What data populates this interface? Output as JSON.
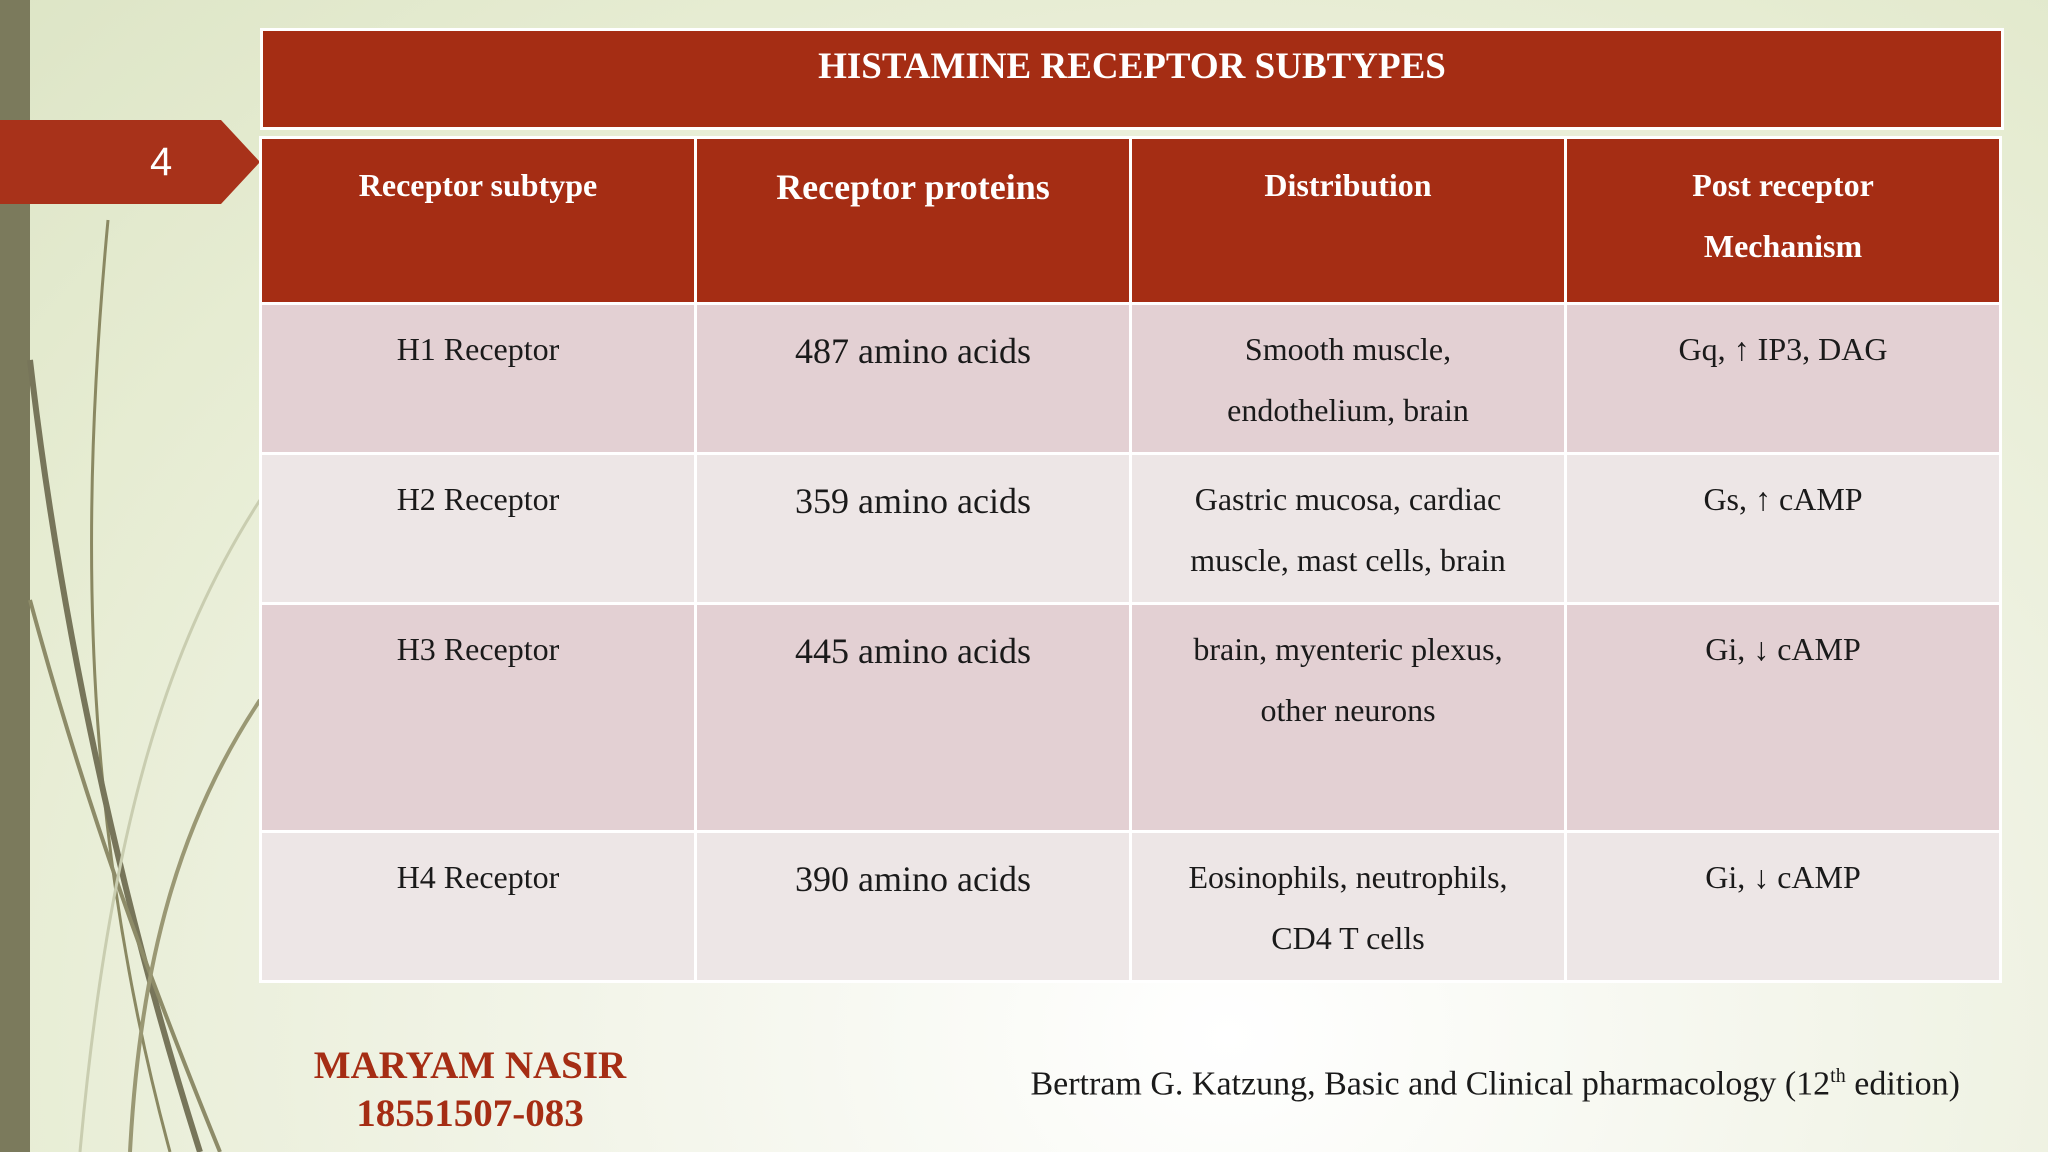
{
  "slide": {
    "page_number": "4",
    "title": "HISTAMINE RECEPTOR SUBTYPES"
  },
  "table": {
    "headers": [
      {
        "line1": "Receptor subtype",
        "line2": ""
      },
      {
        "line1": "Receptor proteins",
        "line2": ""
      },
      {
        "line1": "Distribution",
        "line2": ""
      },
      {
        "line1": "Post receptor",
        "line2": "Mechanism"
      }
    ],
    "rows": [
      {
        "subtype": "H1 Receptor",
        "proteins": "487 amino acids",
        "distribution_1": "Smooth muscle,",
        "distribution_2": "endothelium, brain",
        "mechanism": "Gq, ↑ IP3, DAG"
      },
      {
        "subtype": "H2 Receptor",
        "proteins": "359 amino acids",
        "distribution_1": "Gastric mucosa, cardiac",
        "distribution_2": "muscle, mast cells, brain",
        "mechanism": "Gs, ↑ cAMP"
      },
      {
        "subtype": "H3 Receptor",
        "proteins": "445 amino acids",
        "distribution_1": "brain, myenteric plexus,",
        "distribution_2": "other neurons",
        "mechanism": "Gi, ↓ cAMP"
      },
      {
        "subtype": "H4 Receptor",
        "proteins": "390 amino acids",
        "distribution_1": "Eosinophils, neutrophils,",
        "distribution_2": "CD4 T cells",
        "mechanism": "Gi, ↓ cAMP"
      }
    ]
  },
  "footer": {
    "author_name": "MARYAM NASIR",
    "author_id": "18551507-083",
    "citation_prefix": "Bertram G. Katzung, Basic and Clinical pharmacology (12",
    "citation_sup": "th",
    "citation_suffix": " edition)"
  },
  "colors": {
    "accent": "#a52d14",
    "row_light": "#ede6e6",
    "row_dark": "#e3d0d3",
    "left_bar": "#7b7a5c"
  }
}
